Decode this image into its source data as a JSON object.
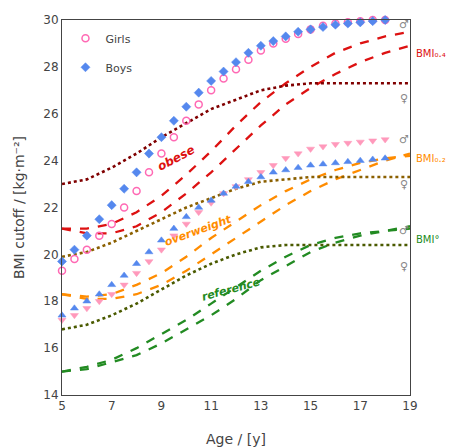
{
  "chart_data": {
    "type": "line",
    "xlabel": "Age / [y]",
    "ylabel": "BMI cutoff / [kg·m⁻²]",
    "xlim": [
      5,
      19
    ],
    "ylim": [
      14,
      30
    ],
    "xticks": [
      5,
      7,
      9,
      11,
      13,
      15,
      17,
      19
    ],
    "yticks": [
      14,
      16,
      18,
      20,
      22,
      24,
      26,
      28,
      30
    ],
    "grid": false,
    "legend": "upper left",
    "series": [
      {
        "type": "line",
        "x": [
          5,
          6,
          7,
          8,
          9,
          10,
          11,
          12,
          13,
          14,
          15,
          16,
          17,
          18,
          19
        ],
        "values": [
          15.0,
          15.1,
          15.4,
          15.7,
          16.2,
          16.8,
          17.4,
          18.1,
          18.9,
          19.5,
          20.1,
          20.5,
          20.8,
          21.0,
          21.2
        ],
        "color": "#228B22",
        "line_style": "dashed"
      },
      {
        "type": "line",
        "x": [
          5,
          6,
          7,
          8,
          9,
          10,
          11,
          12,
          13,
          14,
          15,
          16,
          17,
          18,
          19
        ],
        "values": [
          15.0,
          15.2,
          15.5,
          16.0,
          16.6,
          17.2,
          17.9,
          18.6,
          19.3,
          19.9,
          20.4,
          20.7,
          20.9,
          21.0,
          21.1
        ],
        "color": "#228B22",
        "line_style": "dashed"
      },
      {
        "type": "line",
        "x": [
          5,
          6,
          7,
          8,
          9,
          10,
          11,
          12,
          13,
          14,
          15,
          16,
          17,
          18,
          19
        ],
        "values": [
          16.8,
          17.0,
          17.4,
          17.9,
          18.5,
          19.1,
          19.6,
          20.0,
          20.3,
          20.4,
          20.4,
          20.4,
          20.4,
          20.4,
          20.4
        ],
        "color": "#4A5A00",
        "line_style": "dotted"
      },
      {
        "type": "line",
        "x": [
          5,
          6,
          7,
          8,
          9,
          10,
          11,
          12,
          13,
          14,
          15,
          16,
          17,
          18,
          19
        ],
        "values": [
          18.3,
          18.1,
          18.1,
          18.3,
          18.7,
          19.3,
          20.0,
          20.7,
          21.4,
          22.1,
          22.7,
          23.2,
          23.6,
          24.0,
          24.3
        ],
        "color": "#FF8C00",
        "line_style": "dashed"
      },
      {
        "type": "line",
        "x": [
          5,
          6,
          7,
          8,
          9,
          10,
          11,
          12,
          13,
          14,
          15,
          16,
          17,
          18,
          19
        ],
        "values": [
          18.3,
          18.2,
          18.3,
          18.7,
          19.2,
          19.9,
          20.7,
          21.4,
          22.1,
          22.7,
          23.2,
          23.6,
          23.9,
          24.1,
          24.2
        ],
        "color": "#FF8C00",
        "line_style": "dashed"
      },
      {
        "type": "line",
        "x": [
          5,
          6,
          7,
          8,
          9,
          10,
          11,
          12,
          13,
          14,
          15,
          16,
          17,
          18,
          19
        ],
        "values": [
          19.9,
          20.1,
          20.5,
          21.0,
          21.5,
          22.0,
          22.4,
          22.8,
          23.1,
          23.2,
          23.3,
          23.3,
          23.3,
          23.3,
          23.3
        ],
        "color": "#8B6000",
        "line_style": "dotted"
      },
      {
        "type": "line",
        "x": [
          5,
          6,
          7,
          8,
          9,
          10,
          11,
          12,
          13,
          14,
          15,
          16,
          17,
          18,
          19
        ],
        "values": [
          21.1,
          20.9,
          20.9,
          21.2,
          21.8,
          22.6,
          23.5,
          24.5,
          25.5,
          26.4,
          27.1,
          27.7,
          28.2,
          28.6,
          28.9
        ],
        "color": "#DD1111",
        "line_style": "dashed"
      },
      {
        "type": "line",
        "x": [
          5,
          6,
          7,
          8,
          9,
          10,
          11,
          12,
          13,
          14,
          15,
          16,
          17,
          18,
          19
        ],
        "values": [
          21.1,
          21.1,
          21.3,
          21.8,
          22.5,
          23.4,
          24.4,
          25.5,
          26.5,
          27.3,
          28.0,
          28.6,
          29.0,
          29.3,
          29.5
        ],
        "color": "#DD1111",
        "line_style": "dashed"
      },
      {
        "type": "line",
        "x": [
          5,
          6,
          7,
          8,
          9,
          10,
          11,
          12,
          13,
          14,
          15,
          16,
          17,
          18,
          19
        ],
        "values": [
          23.0,
          23.2,
          23.7,
          24.3,
          25.0,
          25.6,
          26.2,
          26.6,
          27.0,
          27.2,
          27.3,
          27.3,
          27.3,
          27.3,
          27.3
        ],
        "color": "#800000",
        "line_style": "dotted"
      },
      {
        "type": "scatter",
        "name": "Girls",
        "x": [
          5,
          5.5,
          6,
          6.5,
          7,
          7.5,
          8,
          8.5,
          9,
          9.5,
          10,
          10.5,
          11,
          11.5,
          12,
          12.5,
          13,
          13.5,
          14,
          14.5,
          15,
          15.5,
          16,
          16.5,
          17,
          17.5,
          18
        ],
        "values": [
          19.3,
          19.8,
          20.2,
          20.8,
          21.3,
          22.0,
          22.7,
          23.5,
          24.3,
          25.0,
          25.7,
          26.4,
          27.0,
          27.5,
          27.9,
          28.3,
          28.7,
          29.0,
          29.2,
          29.4,
          29.6,
          29.75,
          29.85,
          29.9,
          29.95,
          30.0,
          30.0
        ],
        "color": "#FF69B4",
        "marker": "circle-open"
      },
      {
        "type": "scatter",
        "name": "Boys",
        "x": [
          5,
          5.5,
          6,
          6.5,
          7,
          7.5,
          8,
          8.5,
          9,
          9.5,
          10,
          10.5,
          11,
          11.5,
          12,
          12.5,
          13,
          13.5,
          14,
          14.5,
          15,
          15.5,
          16,
          16.5,
          17,
          17.5,
          18
        ],
        "values": [
          19.7,
          20.2,
          20.8,
          21.5,
          22.1,
          22.8,
          23.5,
          24.3,
          25.0,
          25.7,
          26.3,
          26.9,
          27.4,
          27.8,
          28.2,
          28.6,
          28.9,
          29.1,
          29.3,
          29.5,
          29.6,
          29.7,
          29.8,
          29.85,
          29.9,
          29.95,
          30.0
        ],
        "color": "#5588EE",
        "marker": "diamond"
      },
      {
        "type": "scatter",
        "name": "Girls",
        "x": [
          5,
          5.5,
          6,
          6.5,
          7,
          7.5,
          8,
          8.5,
          9,
          9.5,
          10,
          10.5,
          11,
          11.5,
          12,
          12.5,
          13,
          13.5,
          14,
          14.5,
          15,
          15.5,
          16,
          16.5,
          17,
          17.5,
          18
        ],
        "values": [
          17.2,
          17.4,
          17.7,
          18.0,
          18.3,
          18.7,
          19.2,
          19.7,
          20.2,
          20.8,
          21.3,
          21.8,
          22.2,
          22.6,
          22.9,
          23.2,
          23.5,
          23.8,
          24.1,
          24.3,
          24.5,
          24.6,
          24.7,
          24.75,
          24.8,
          24.85,
          24.9
        ],
        "color": "#FF99BB",
        "marker": "triangle-down"
      },
      {
        "type": "scatter",
        "name": "Boys",
        "x": [
          5,
          5.5,
          6,
          6.5,
          7,
          7.5,
          8,
          8.5,
          9,
          9.5,
          10,
          10.5,
          11,
          11.5,
          12,
          12.5,
          13,
          13.5,
          14,
          14.5,
          15,
          15.5,
          16,
          16.5,
          17,
          17.5,
          18
        ],
        "values": [
          17.4,
          17.7,
          18.0,
          18.3,
          18.7,
          19.1,
          19.6,
          20.1,
          20.6,
          21.1,
          21.6,
          22.0,
          22.3,
          22.6,
          22.9,
          23.1,
          23.3,
          23.5,
          23.6,
          23.7,
          23.8,
          23.85,
          23.9,
          23.95,
          24.0,
          24.05,
          24.1
        ],
        "color": "#5588EE",
        "marker": "triangle-up"
      }
    ],
    "annotations": [
      {
        "text": "obese",
        "x": 9.6,
        "y": 24.1,
        "color": "#DD1111"
      },
      {
        "text": "overweight",
        "x": 10.5,
        "y": 21.0,
        "color": "#FF8C00"
      },
      {
        "text": "reference",
        "x": 11.8,
        "y": 18.5,
        "color": "#228B22"
      },
      {
        "text": "BMI₀.₄",
        "x": 18.85,
        "y": 28.55,
        "color": "#DD1111"
      },
      {
        "text": "BMI₀.₂",
        "x": 18.85,
        "y": 24.1,
        "color": "#FF8C00"
      },
      {
        "text": "BMI°",
        "x": 18.85,
        "y": 20.65,
        "color": "#228B22"
      },
      {
        "text": "♂",
        "x": 18.75,
        "y": 29.8,
        "color": "#888888"
      },
      {
        "text": "♀",
        "x": 18.75,
        "y": 26.65,
        "color": "#888888"
      },
      {
        "text": "♂",
        "x": 18.75,
        "y": 24.9,
        "color": "#888888"
      },
      {
        "text": "♀",
        "x": 18.75,
        "y": 23.0,
        "color": "#888888"
      },
      {
        "text": "♂",
        "x": 18.75,
        "y": 21.0,
        "color": "#888888"
      },
      {
        "text": "♀",
        "x": 18.75,
        "y": 19.5,
        "color": "#888888"
      }
    ]
  }
}
